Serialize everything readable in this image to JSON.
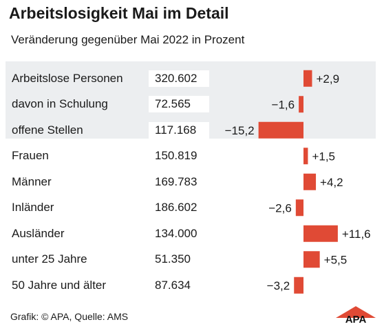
{
  "header": {
    "title": "Arbeitslosigkeit Mai im Detail",
    "subtitle": "Veränderung gegenüber Mai 2022 in Prozent"
  },
  "chart_data": {
    "type": "bar",
    "orientation": "horizontal",
    "bar_color": "#e04a35",
    "highlight_background": "#eceef0",
    "categories": [
      "Arbeitslose Personen",
      "davon in Schulung",
      "offene Stellen",
      "Frauen",
      "Männer",
      "Inländer",
      "Ausländer",
      "unter 25 Jahre",
      "50 Jahre und älter"
    ],
    "absolute_values": [
      "320.602",
      "72.565",
      "117.168",
      "150.819",
      "169.783",
      "186.602",
      "134.000",
      "51.350",
      "87.634"
    ],
    "values": [
      2.9,
      -1.6,
      -15.2,
      1.5,
      4.2,
      -2.6,
      11.6,
      5.5,
      -3.2
    ],
    "value_labels": [
      "+2,9",
      "−1,6",
      "−15,2",
      "+1,5",
      "+4,2",
      "−2,6",
      "+11,6",
      "+5,5",
      "−3,2"
    ]
  },
  "footer": {
    "source": "Grafik: © APA, Quelle: AMS",
    "logo_text": "APA"
  }
}
